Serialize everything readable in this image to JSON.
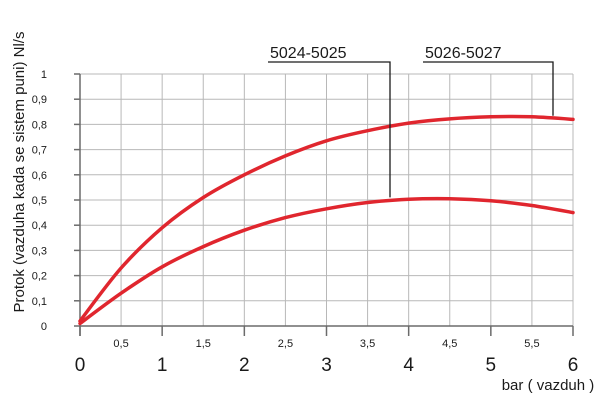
{
  "chart_data": {
    "type": "line",
    "title": "",
    "xlabel": "bar ( vazduh )",
    "ylabel": "Protok (vazduha kada se sistem puni) Nl/s",
    "xlim": [
      0,
      6
    ],
    "ylim": [
      0,
      1
    ],
    "grid": true,
    "x_major_ticks": [
      "0",
      "1",
      "2",
      "3",
      "4",
      "5",
      "6"
    ],
    "x_minor_ticks": [
      "0,5",
      "1,5",
      "2,5",
      "3,5",
      "4,5",
      "5,5"
    ],
    "y_ticks": [
      "0",
      "0,1",
      "0,2",
      "0,3",
      "0,4",
      "0,5",
      "0,6",
      "0,7",
      "0,8",
      "0,9",
      "1"
    ],
    "line_color": "#e0262e",
    "series": [
      {
        "name": "5026-5027",
        "x": [
          0,
          0.5,
          1,
          1.5,
          2,
          2.5,
          3,
          3.5,
          4,
          4.5,
          5,
          5.5,
          6
        ],
        "y": [
          0.02,
          0.23,
          0.39,
          0.51,
          0.6,
          0.675,
          0.735,
          0.775,
          0.805,
          0.822,
          0.83,
          0.83,
          0.82
        ]
      },
      {
        "name": "5024-5025",
        "x": [
          0,
          0.5,
          1,
          1.5,
          2,
          2.5,
          3,
          3.5,
          4,
          4.5,
          5,
          5.5,
          6
        ],
        "y": [
          0.01,
          0.13,
          0.235,
          0.315,
          0.38,
          0.43,
          0.465,
          0.49,
          0.503,
          0.505,
          0.497,
          0.478,
          0.45
        ]
      }
    ]
  }
}
